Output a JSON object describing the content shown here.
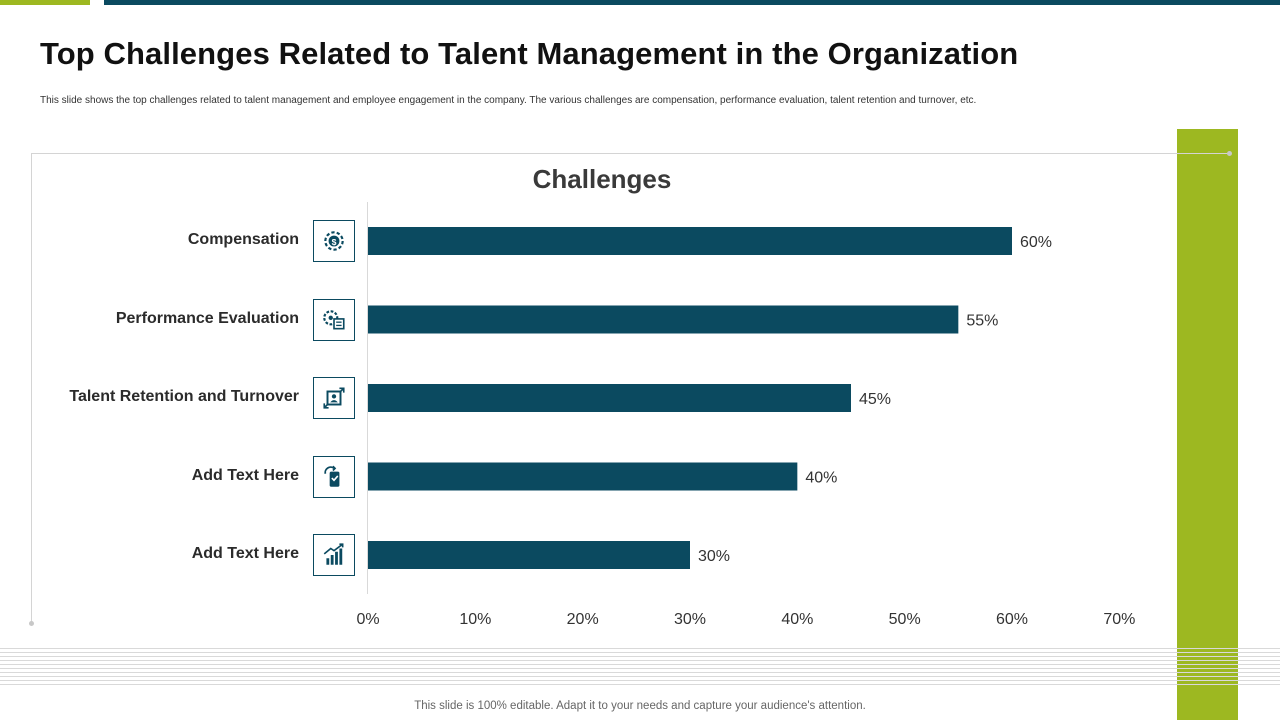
{
  "slide": {
    "title": "Top Challenges Related to Talent Management in the Organization",
    "subtitle": "This slide shows the top challenges related to talent management and employee engagement in the company. The various challenges are compensation, performance evaluation, talent retention and turnover, etc.",
    "footer": "This slide is 100% editable. Adapt it to your needs and capture your audience's attention."
  },
  "colors": {
    "bar": "#0b4a60",
    "accent_green": "#9db821",
    "icon": "#0b4a60"
  },
  "chart_data": {
    "type": "bar",
    "orientation": "horizontal",
    "title": "Challenges",
    "categories": [
      "Compensation",
      "Performance Evaluation",
      "Talent Retention and Turnover",
      "Add Text Here",
      "Add Text Here"
    ],
    "icons": [
      "money-gear-icon",
      "evaluation-gear-icon",
      "id-card-arrows-icon",
      "phone-refresh-icon",
      "growth-chart-icon"
    ],
    "values": [
      60,
      55,
      45,
      40,
      30
    ],
    "value_labels": [
      "60%",
      "55%",
      "45%",
      "40%",
      "30%"
    ],
    "xlim": [
      0,
      70
    ],
    "xticks": [
      "0%",
      "10%",
      "20%",
      "30%",
      "40%",
      "50%",
      "60%",
      "70%"
    ],
    "xlabel": "",
    "ylabel": "",
    "grid": false,
    "legend": "none"
  }
}
